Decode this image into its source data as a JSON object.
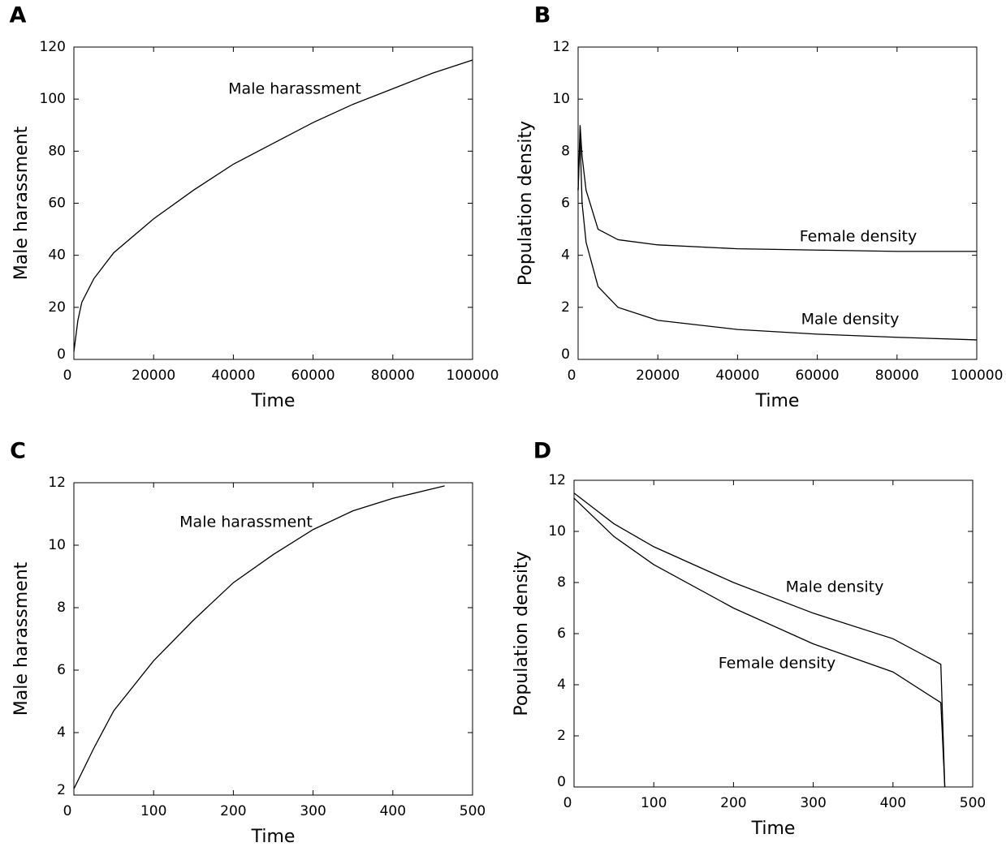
{
  "chart_data": [
    {
      "type": "line",
      "panel_label": "A",
      "xlabel": "Time",
      "ylabel": "Male harassment",
      "xlim": [
        0,
        100000
      ],
      "xticks": [
        0,
        20000,
        40000,
        60000,
        80000,
        100000
      ],
      "ylim": [
        0,
        120
      ],
      "yticks": [
        0,
        20,
        40,
        60,
        80,
        100,
        120
      ],
      "x": [
        0,
        1000,
        2000,
        5000,
        10000,
        20000,
        30000,
        40000,
        50000,
        60000,
        70000,
        80000,
        90000,
        100000
      ],
      "series": [
        {
          "name": "Male harassment",
          "color": "#000000",
          "values": [
            3,
            15,
            22,
            31,
            41,
            54,
            65,
            75,
            83,
            91,
            98,
            104,
            110,
            115
          ]
        }
      ]
    },
    {
      "type": "line",
      "panel_label": "B",
      "xlabel": "Time",
      "ylabel": "Population density",
      "xlim": [
        0,
        100000
      ],
      "xticks": [
        0,
        20000,
        40000,
        60000,
        80000,
        100000
      ],
      "ylim": [
        0,
        12
      ],
      "yticks": [
        0,
        2,
        4,
        6,
        8,
        10,
        12
      ],
      "x": [
        0,
        500,
        1000,
        2000,
        5000,
        10000,
        20000,
        40000,
        60000,
        80000,
        100000
      ],
      "series": [
        {
          "name": "Female density",
          "color": "#000000",
          "values": [
            6.5,
            9,
            7.8,
            6.5,
            5.0,
            4.6,
            4.4,
            4.25,
            4.2,
            4.15,
            4.15
          ]
        },
        {
          "name": "Male density",
          "color": "#000000",
          "values": [
            6.5,
            8.5,
            6.0,
            4.5,
            2.8,
            2.0,
            1.5,
            1.15,
            0.97,
            0.85,
            0.75
          ]
        }
      ]
    },
    {
      "type": "line",
      "panel_label": "C",
      "xlabel": "Time",
      "ylabel": "Male harassment",
      "xlim": [
        0,
        500
      ],
      "xticks": [
        0,
        100,
        200,
        300,
        400,
        500
      ],
      "ylim": [
        2,
        12
      ],
      "yticks": [
        2,
        4,
        6,
        8,
        10,
        12
      ],
      "x": [
        0,
        25,
        50,
        100,
        150,
        200,
        250,
        300,
        350,
        400,
        465
      ],
      "series": [
        {
          "name": "Male harassment",
          "color": "#000000",
          "values": [
            2.2,
            3.5,
            4.7,
            6.3,
            7.6,
            8.8,
            9.7,
            10.5,
            11.1,
            11.5,
            11.9
          ]
        }
      ]
    },
    {
      "type": "line",
      "panel_label": "D",
      "xlabel": "Time",
      "ylabel": "Population density",
      "xlim": [
        0,
        500
      ],
      "xticks": [
        0,
        100,
        200,
        300,
        400,
        500
      ],
      "ylim": [
        0,
        12
      ],
      "yticks": [
        0,
        2,
        4,
        6,
        8,
        10,
        12
      ],
      "x": [
        0,
        50,
        100,
        200,
        300,
        400,
        460,
        465
      ],
      "series": [
        {
          "name": "Male density",
          "color": "#000000",
          "values": [
            11.5,
            10.3,
            9.4,
            8.0,
            6.8,
            5.8,
            4.8,
            0
          ]
        },
        {
          "name": "Female density",
          "color": "#000000",
          "values": [
            11.3,
            9.8,
            8.7,
            7.0,
            5.6,
            4.5,
            3.3,
            0
          ]
        }
      ]
    }
  ]
}
